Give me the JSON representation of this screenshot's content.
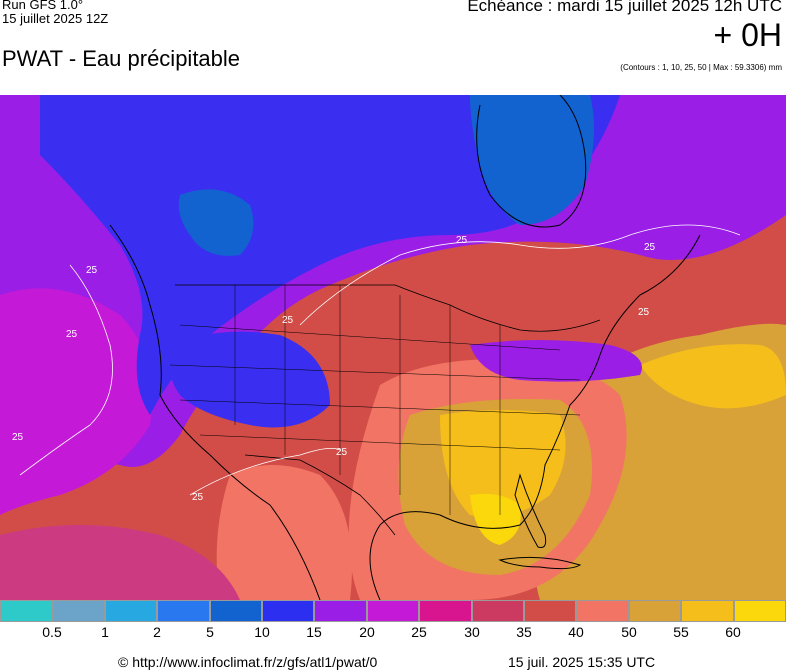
{
  "header": {
    "run_model": "Run GFS 1.0°",
    "run_date": "15 juillet 2025 12Z",
    "echeance": "Echéance : mardi 15 juillet 2025 12h UTC",
    "offset": "+ 0H",
    "title": "PWAT - Eau précipitable",
    "contours_note": "(Contours : 1, 10, 25, 50 | Max : 59.3306) mm"
  },
  "map": {
    "contour_label": "25",
    "colors": {
      "c15": "#3a2ff0",
      "c20": "#9a1ee6",
      "c25": "#c41ad8",
      "c30": "#cc3a82",
      "c35": "#d24d48",
      "c40": "#f27464",
      "c50": "#d8a238",
      "c55": "#f6be1a",
      "c60": "#fad80c"
    }
  },
  "legend": {
    "labels": [
      "0.5",
      "1",
      "2",
      "5",
      "10",
      "15",
      "20",
      "25",
      "30",
      "35",
      "40",
      "50",
      "55",
      "60"
    ],
    "colors": [
      "#2ec9c9",
      "#6ba4c8",
      "#28a8e0",
      "#2a78f0",
      "#1262d0",
      "#2c2ef0",
      "#9a1ee6",
      "#c41ad8",
      "#d8148e",
      "#cc3a62",
      "#d24d48",
      "#f27464",
      "#d8a238",
      "#f6be1a",
      "#fad80c"
    ]
  },
  "footer": {
    "credit": "© http://www.infoclimat.fr/z/gfs/atl1/pwat/0",
    "generated": "15 juil. 2025 15:35 UTC"
  }
}
